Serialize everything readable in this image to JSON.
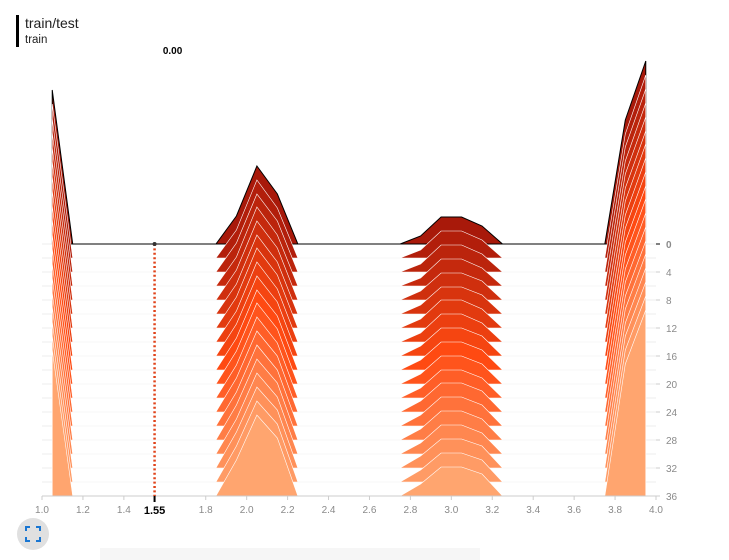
{
  "chart_data": {
    "type": "ridgeline",
    "title": "train/test",
    "subtitle": "train",
    "xlim": [
      1.0,
      4.0
    ],
    "xticks": [
      {
        "value": 1.0,
        "label": "1.0"
      },
      1.2,
      1.4,
      1.8,
      {
        "value": 2.0,
        "label": "2.0"
      },
      2.2,
      2.4,
      2.6,
      2.8,
      {
        "value": 3.0,
        "label": "3.0"
      },
      3.2,
      3.4,
      3.6,
      3.8,
      {
        "value": 4.0,
        "label": "4.0"
      }
    ],
    "ylim": [
      0,
      36
    ],
    "yticks": [
      0,
      4,
      8,
      12,
      16,
      20,
      24,
      28,
      32,
      36
    ],
    "x": [
      1.05,
      1.15,
      1.85,
      1.95,
      2.05,
      2.15,
      2.25,
      2.75,
      2.85,
      2.95,
      3.05,
      3.15,
      3.25,
      3.75,
      3.85,
      3.95
    ],
    "colors": [
      "#a8190a",
      "#ff4a12",
      "#ffa56f"
    ],
    "hover": {
      "x": 1.55,
      "value_label": "0.00"
    },
    "slices": [
      {
        "step": 0,
        "values": [
          15.4,
          0,
          0,
          2.8,
          7.8,
          5.0,
          0,
          0,
          0.8,
          2.7,
          2.7,
          1.8,
          0,
          0,
          12.4,
          18.3
        ]
      },
      {
        "step": 2,
        "values": [
          15.4,
          0,
          0,
          2.8,
          7.8,
          5.0,
          0,
          0,
          0.8,
          2.7,
          2.7,
          1.8,
          0,
          0,
          12.4,
          18.3
        ]
      },
      {
        "step": 4,
        "values": [
          15.3,
          0,
          0,
          2.9,
          7.8,
          5.1,
          0,
          0,
          0.8,
          2.7,
          2.7,
          1.8,
          0,
          0,
          12.5,
          18.3
        ]
      },
      {
        "step": 6,
        "values": [
          15.3,
          0,
          0,
          2.9,
          7.9,
          5.1,
          0,
          0,
          0.8,
          2.7,
          2.7,
          1.8,
          0,
          0,
          12.5,
          18.3
        ]
      },
      {
        "step": 8,
        "values": [
          15.2,
          0,
          0,
          3.0,
          7.9,
          5.2,
          0,
          0,
          0.9,
          2.7,
          2.7,
          1.9,
          0,
          0,
          12.6,
          18.3
        ]
      },
      {
        "step": 10,
        "values": [
          15.2,
          0,
          0,
          3.0,
          7.9,
          5.2,
          0,
          0,
          0.9,
          2.7,
          2.7,
          1.9,
          0,
          0,
          12.6,
          18.3
        ]
      },
      {
        "step": 12,
        "values": [
          15.1,
          0,
          0,
          3.1,
          8.0,
          5.3,
          0,
          0,
          0.9,
          2.8,
          2.8,
          1.9,
          0,
          0,
          12.7,
          18.4
        ]
      },
      {
        "step": 14,
        "values": [
          15.1,
          0,
          0,
          3.1,
          8.0,
          5.3,
          0,
          0,
          0.9,
          2.8,
          2.8,
          1.9,
          0,
          0,
          12.7,
          18.4
        ]
      },
      {
        "step": 16,
        "values": [
          15.0,
          0,
          0,
          3.2,
          8.0,
          5.4,
          0,
          0,
          1.0,
          2.8,
          2.8,
          2.0,
          0,
          0,
          12.8,
          18.4
        ]
      },
      {
        "step": 18,
        "values": [
          15.0,
          0,
          0,
          3.2,
          8.0,
          5.4,
          0,
          0,
          1.0,
          2.8,
          2.8,
          2.0,
          0,
          0,
          12.8,
          18.4
        ]
      },
      {
        "step": 20,
        "values": [
          14.9,
          0,
          0,
          3.3,
          8.1,
          5.5,
          0,
          0,
          1.0,
          2.8,
          2.8,
          2.0,
          0,
          0,
          12.9,
          18.5
        ]
      },
      {
        "step": 22,
        "values": [
          14.9,
          0,
          0,
          3.3,
          8.1,
          5.5,
          0,
          0,
          1.0,
          2.8,
          2.8,
          2.0,
          0,
          0,
          12.9,
          18.5
        ]
      },
      {
        "step": 24,
        "values": [
          14.8,
          0,
          0,
          3.4,
          8.1,
          5.6,
          0,
          0,
          1.1,
          2.9,
          2.9,
          2.1,
          0,
          0,
          13.0,
          18.5
        ]
      },
      {
        "step": 26,
        "values": [
          14.8,
          0,
          0,
          3.4,
          8.1,
          5.6,
          0,
          0,
          1.1,
          2.9,
          2.9,
          2.1,
          0,
          0,
          13.0,
          18.5
        ]
      },
      {
        "step": 28,
        "values": [
          14.7,
          0,
          0,
          3.5,
          8.1,
          5.7,
          0,
          0,
          1.1,
          2.9,
          2.9,
          2.1,
          0,
          0,
          13.1,
          18.6
        ]
      },
      {
        "step": 30,
        "values": [
          14.7,
          0,
          0,
          3.5,
          8.1,
          5.7,
          0,
          0,
          1.1,
          2.9,
          2.9,
          2.1,
          0,
          0,
          13.1,
          18.6
        ]
      },
      {
        "step": 32,
        "values": [
          14.6,
          0,
          0,
          3.6,
          8.1,
          5.8,
          0,
          0,
          1.2,
          2.9,
          2.9,
          2.2,
          0,
          0,
          13.2,
          18.6
        ]
      },
      {
        "step": 34,
        "values": [
          14.6,
          0,
          0,
          3.6,
          8.1,
          5.8,
          0,
          0,
          1.2,
          2.9,
          2.9,
          2.2,
          0,
          0,
          13.2,
          18.6
        ]
      },
      {
        "step": 36,
        "values": [
          14.6,
          0,
          0,
          3.6,
          8.1,
          5.8,
          0,
          0,
          1.2,
          2.9,
          2.9,
          2.2,
          0,
          0,
          13.2,
          18.6
        ]
      }
    ]
  }
}
